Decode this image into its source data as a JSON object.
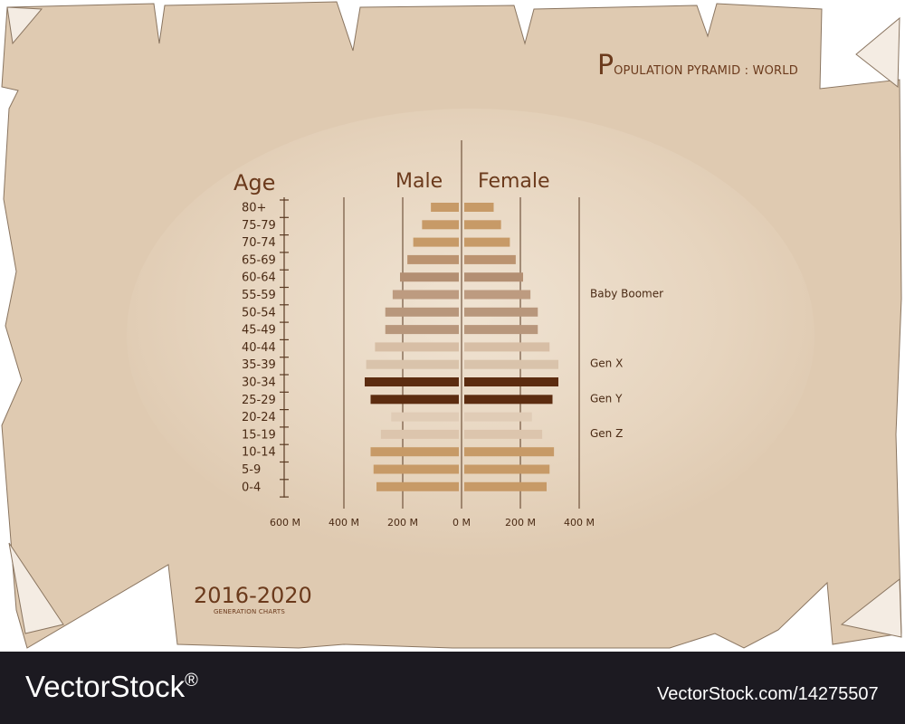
{
  "header": {
    "title_initial": "P",
    "title_rest": "OPULATION PYRAMID : WORLD"
  },
  "period": {
    "years": "2016-2020",
    "subtitle": "GENERATION CHARTS"
  },
  "footer": {
    "logo_text": "VectorStock",
    "logo_mark": "®",
    "image_id": "VectorStock.com/14275507"
  },
  "colors": {
    "paper": "#e6d3bc",
    "ink": "#6b3a1c",
    "highlight": "#5c2c10"
  },
  "chart_data": {
    "type": "bar",
    "orientation": "horizontal-pyramid",
    "title": "POPULATION PYRAMID : WORLD",
    "ylabel": "Age",
    "left_label": "Male",
    "right_label": "Female",
    "categories": [
      "80+",
      "75-79",
      "70-74",
      "65-69",
      "60-64",
      "55-59",
      "50-54",
      "45-49",
      "40-44",
      "35-39",
      "30-34",
      "25-29",
      "20-24",
      "15-19",
      "10-14",
      "5-9",
      "0-4"
    ],
    "series": [
      {
        "name": "Male",
        "values": [
          95,
          125,
          155,
          175,
          200,
          225,
          250,
          250,
          285,
          315,
          320,
          300,
          230,
          265,
          300,
          290,
          280
        ],
        "color": "#c79a67"
      },
      {
        "name": "Female",
        "values": [
          100,
          125,
          155,
          175,
          200,
          225,
          250,
          250,
          290,
          320,
          320,
          300,
          230,
          265,
          305,
          290,
          280
        ],
        "color": "#c79a67"
      }
    ],
    "bar_colors": [
      "#c79a67",
      "#c79a67",
      "#c79a67",
      "#bb9370",
      "#b38f73",
      "#bd9b80",
      "#b8977c",
      "#b8977c",
      "#d7bea5",
      "#d9c3ab",
      "#5c2c10",
      "#5c2c10",
      "#e0ccb6",
      "#dcc5ad",
      "#c79a67",
      "#c79a67",
      "#c79a67"
    ],
    "xticks": [
      "600 M",
      "400 M",
      "200 M",
      "0 M",
      "200 M",
      "400 M"
    ],
    "xtick_values": [
      -600,
      -400,
      -200,
      0,
      200,
      400
    ],
    "xlim": [
      -600,
      400
    ],
    "annotations": [
      {
        "label": "Baby Boomer",
        "category": "55-59"
      },
      {
        "label": "Gen X",
        "category": "35-39"
      },
      {
        "label": "Gen Y",
        "category": "25-29"
      },
      {
        "label": "Gen Z",
        "category": "15-19"
      }
    ]
  }
}
